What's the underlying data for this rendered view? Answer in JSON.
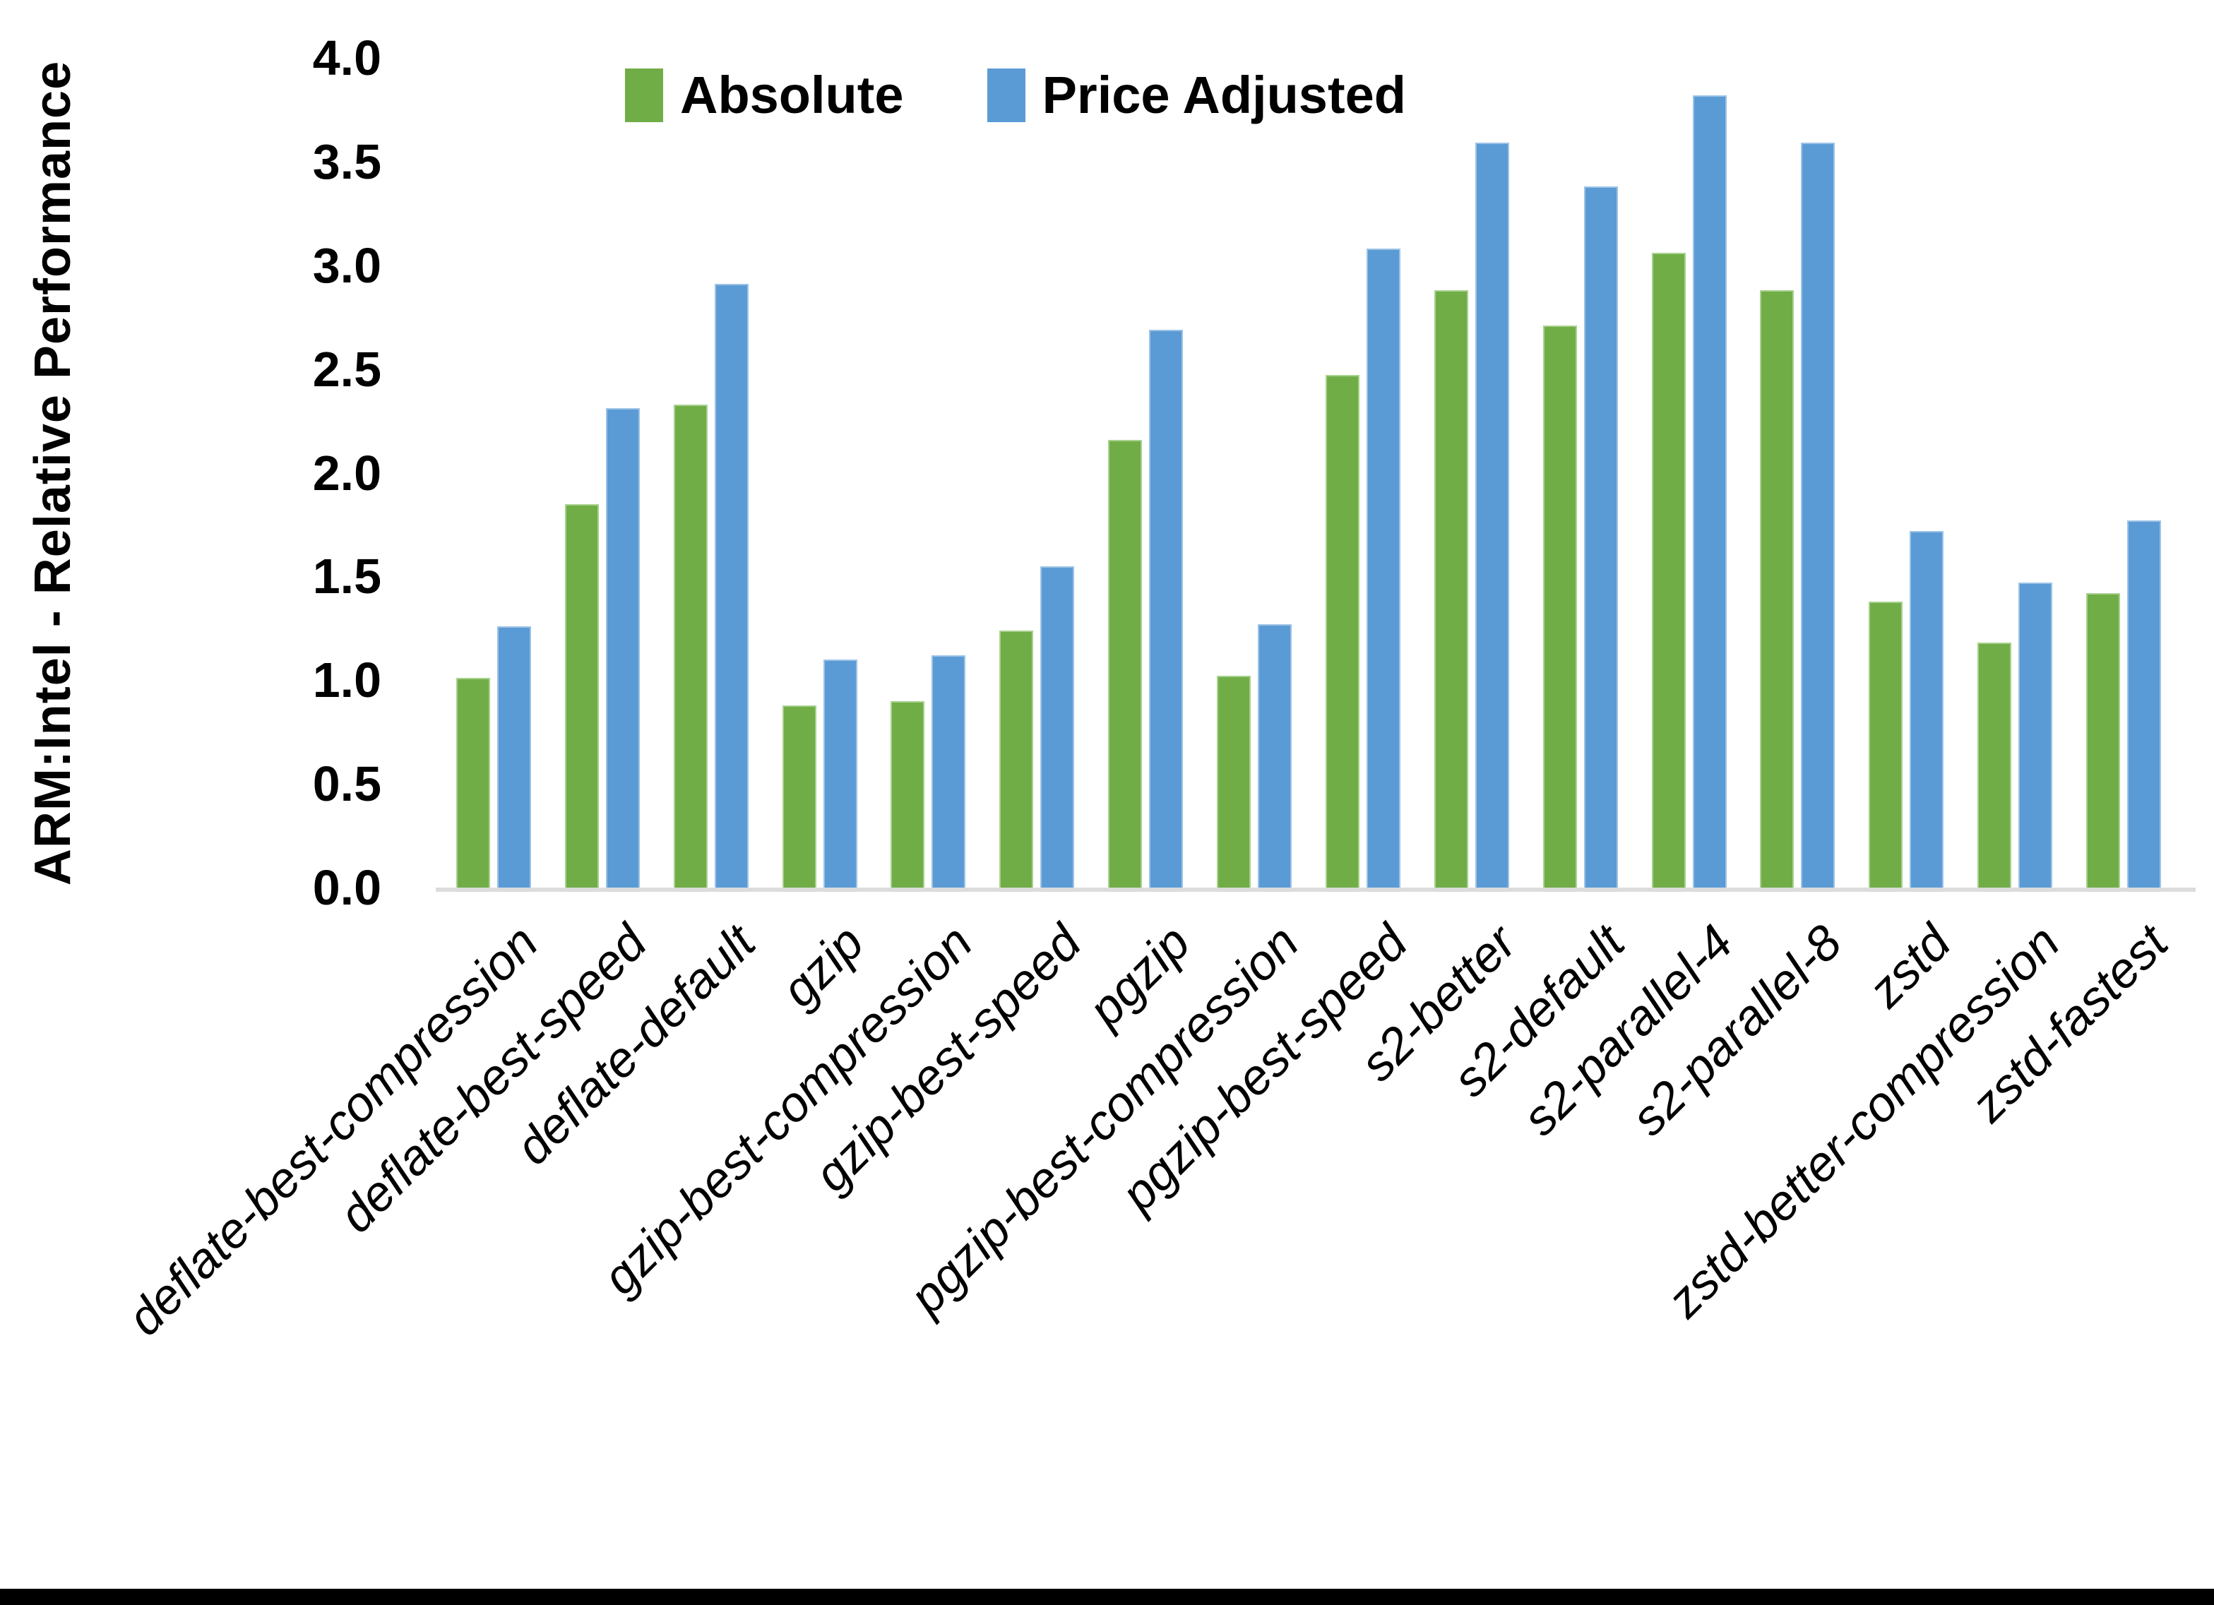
{
  "figure": {
    "background": "#ffffff",
    "bottom_bar_color": "#000000"
  },
  "chart_data": {
    "type": "bar",
    "title": "",
    "xlabel": "",
    "ylabel": "ARM:Intel - Relative Performance",
    "ylim": [
      0.0,
      4.0
    ],
    "ytick_step": 0.5,
    "yticks": [
      "4.0",
      "3.5",
      "3.0",
      "2.5",
      "2.0",
      "1.5",
      "1.0",
      "0.5",
      "0.0"
    ],
    "grid": "off",
    "legend_position": "top-center",
    "axis_line_color": "#DCDCDC",
    "text_color": "#000000",
    "categories": [
      "deflate-best-compression",
      "deflate-best-speed",
      "deflate-default",
      "gzip",
      "gzip-best-compression",
      "gzip-best-speed",
      "pgzip",
      "pgzip-best-compression",
      "pgzip-best-speed",
      "s2-better",
      "s2-default",
      "s2-parallel-4",
      "s2-parallel-8",
      "zstd",
      "zstd-better-compression",
      "zstd-fastest"
    ],
    "series": [
      {
        "name": "Absolute",
        "color": "#70AD47",
        "edge_color": "#A9D18E",
        "values": [
          1.01,
          1.85,
          2.33,
          0.88,
          0.9,
          1.24,
          2.16,
          1.02,
          2.47,
          2.88,
          2.71,
          3.06,
          2.88,
          1.38,
          1.18,
          1.42
        ]
      },
      {
        "name": "Price Adjusted",
        "color": "#5B9BD5",
        "edge_color": "#9DC3E6",
        "values": [
          1.26,
          2.31,
          2.91,
          1.1,
          1.12,
          1.55,
          2.69,
          1.27,
          3.08,
          3.59,
          3.38,
          3.82,
          3.59,
          1.72,
          1.47,
          1.77
        ]
      }
    ]
  }
}
